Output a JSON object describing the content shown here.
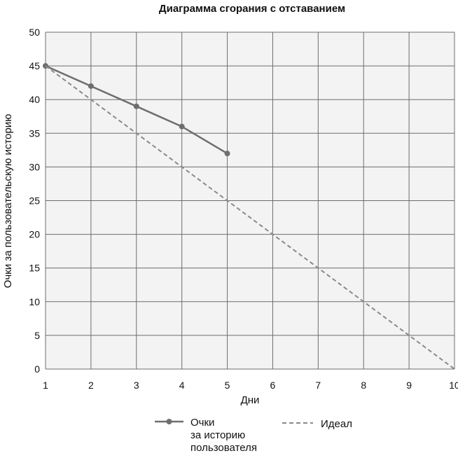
{
  "chart_data": {
    "type": "line",
    "title": "Диаграмма сгорания с отставанием",
    "xlabel": "Дни",
    "ylabel": "Очки за пользовательскую историю",
    "xlim": [
      1,
      10
    ],
    "ylim": [
      0,
      50
    ],
    "x_ticks": [
      "1",
      "2",
      "3",
      "4",
      "5",
      "6",
      "7",
      "8",
      "9",
      "10"
    ],
    "y_ticks": [
      "0",
      "5",
      "10",
      "15",
      "20",
      "25",
      "30",
      "35",
      "40",
      "45",
      "50"
    ],
    "grid": true,
    "legend_position": "bottom",
    "series": [
      {
        "name": "Очки за историю пользователя",
        "name_lines": [
          "Очки",
          "за историю",
          "пользователя"
        ],
        "style": "solid-markers",
        "color": "#6e6e6e",
        "x": [
          1,
          2,
          3,
          4,
          5
        ],
        "values": [
          45,
          42,
          39,
          36,
          32
        ]
      },
      {
        "name": "Идеал",
        "style": "dashed",
        "color": "#8a8a8a",
        "x": [
          1,
          10
        ],
        "values": [
          45,
          0
        ]
      }
    ]
  }
}
